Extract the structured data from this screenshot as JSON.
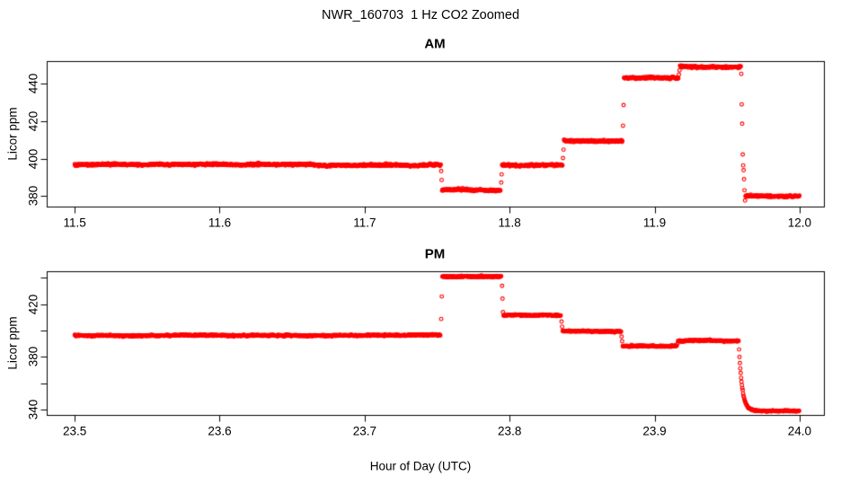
{
  "figure": {
    "title": "NWR_160703  1 Hz CO2 Zoomed",
    "xlabel": "Hour of Day (UTC)",
    "point_color": "#ff0000",
    "axis_color": "#000000",
    "background_color": "#ffffff"
  },
  "chart_data": [
    {
      "id": "am",
      "type": "scatter",
      "title": "AM",
      "ylabel": "Licor ppm",
      "marker": "open-circle",
      "sample_rate_hz": 1,
      "grid": false,
      "legend": null,
      "xlim": [
        11.4807,
        12.0168
      ],
      "ylim": [
        374.4,
        452.1
      ],
      "xticks": {
        "values": [
          11.5,
          11.6,
          11.7,
          11.8,
          11.9,
          12.0
        ],
        "labels": [
          "11.5",
          "11.6",
          "11.7",
          "11.8",
          "11.9",
          "12.0"
        ]
      },
      "yticks": {
        "values": [
          380,
          400,
          420,
          440
        ],
        "labels": [
          "380",
          "400",
          "420",
          "440"
        ]
      },
      "segments": [
        {
          "t0": 11.5,
          "t1": 11.7526,
          "value": 396.6
        },
        {
          "t0": 11.7534,
          "t1": 11.7939,
          "value": 383.3
        },
        {
          "t0": 11.7948,
          "t1": 11.8366,
          "value": 396.6
        },
        {
          "t0": 11.8375,
          "t1": 11.8779,
          "value": 409.6
        },
        {
          "t0": 11.8789,
          "t1": 11.9165,
          "value": 443.0
        },
        {
          "t0": 11.9175,
          "t1": 11.9596,
          "value": 449.2
        },
        {
          "t0": 11.9627,
          "t1": 12.0,
          "value": 380.0
        }
      ],
      "transitions": [
        [
          11.7528,
          393.3
        ],
        [
          11.7531,
          388.6
        ],
        [
          11.7942,
          387.2
        ],
        [
          11.7945,
          391.6
        ],
        [
          11.8368,
          400.3
        ],
        [
          11.8372,
          404.8
        ],
        [
          11.8782,
          417.6
        ],
        [
          11.8786,
          428.6
        ],
        [
          11.9168,
          444.9
        ],
        [
          11.9172,
          447.2
        ],
        [
          11.9598,
          445.3
        ],
        [
          11.9601,
          429.0
        ],
        [
          11.9604,
          418.6
        ],
        [
          11.9608,
          402.2
        ],
        [
          11.9611,
          396.4
        ],
        [
          11.9614,
          393.8
        ],
        [
          11.9617,
          389.0
        ],
        [
          11.962,
          383.1
        ],
        [
          11.9624,
          377.6
        ]
      ]
    },
    {
      "id": "pm",
      "type": "scatter",
      "title": "PM",
      "ylabel": "Licor ppm",
      "marker": "open-circle",
      "sample_rate_hz": 1,
      "grid": false,
      "legend": null,
      "xlim": [
        23.4807,
        24.0168
      ],
      "ylim": [
        335.8,
        445.1
      ],
      "xticks": {
        "values": [
          23.5,
          23.6,
          23.7,
          23.8,
          23.9,
          24.0
        ],
        "labels": [
          "23.5",
          "23.6",
          "23.7",
          "23.8",
          "23.9",
          "24.0"
        ]
      },
      "yticks": {
        "values": [
          340,
          360,
          380,
          400,
          420,
          440
        ],
        "labels": [
          "340",
          "",
          "380",
          "",
          "420",
          ""
        ]
      },
      "segments": [
        {
          "t0": 23.5,
          "t1": 23.7525,
          "value": 396.3
        },
        {
          "t0": 23.7536,
          "t1": 23.7944,
          "value": 441.0
        },
        {
          "t0": 23.7958,
          "t1": 23.8354,
          "value": 411.6
        },
        {
          "t0": 23.8366,
          "t1": 23.8769,
          "value": 399.6
        },
        {
          "t0": 23.878,
          "t1": 23.9154,
          "value": 388.1
        },
        {
          "t0": 23.9162,
          "t1": 23.9578,
          "value": 392.1
        },
        {
          "type": "decay",
          "t0": 23.958,
          "t1": 23.97,
          "from": 392.0,
          "to": 339.0,
          "tau": 0.0022
        },
        {
          "t0": 23.97,
          "t1": 24.0,
          "value": 339.0
        }
      ],
      "transitions": [
        [
          23.7528,
          408.8
        ],
        [
          23.7532,
          425.9
        ],
        [
          23.7948,
          434.0
        ],
        [
          23.7951,
          424.2
        ],
        [
          23.7954,
          414.0
        ],
        [
          23.8358,
          406.8
        ],
        [
          23.8362,
          403.0
        ],
        [
          23.8772,
          395.4
        ],
        [
          23.8776,
          391.8
        ],
        [
          23.9158,
          389.9
        ]
      ]
    }
  ]
}
